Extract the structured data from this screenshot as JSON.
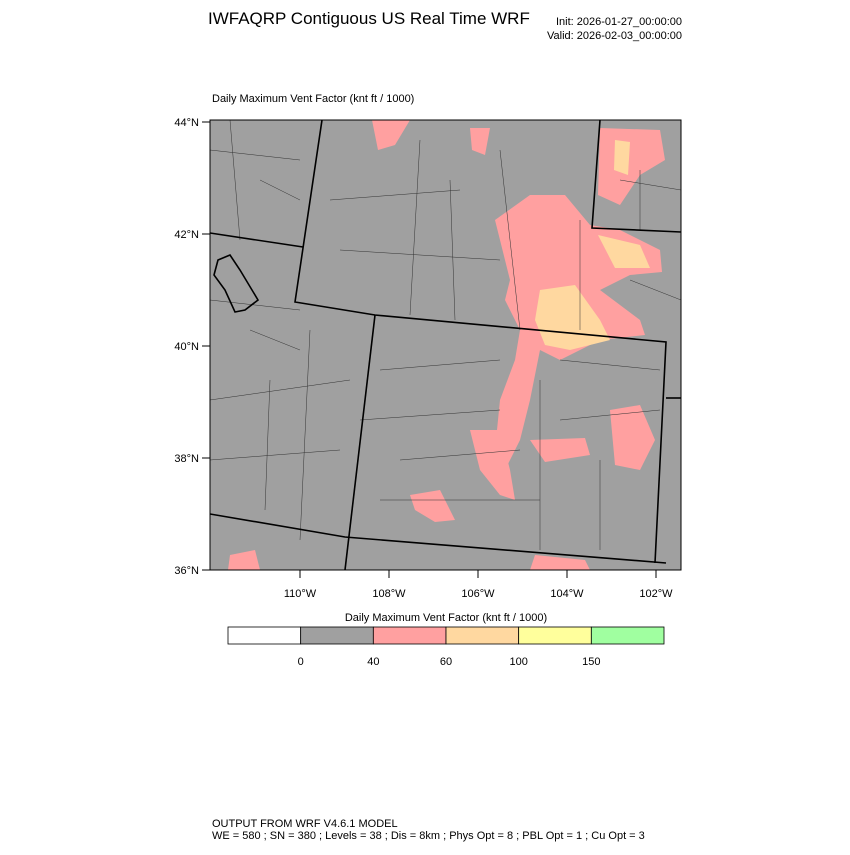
{
  "header": {
    "title": "IWFAQRP Contiguous US Real Time WRF",
    "init": "Init: 2026-01-27_00:00:00",
    "valid": "Valid: 2026-02-03_00:00:00"
  },
  "map": {
    "title": "Daily Maximum Vent Factor   (knt ft / 1000)",
    "lat_labels": [
      "44°N",
      "42°N",
      "40°N",
      "38°N",
      "36°N"
    ],
    "lon_labels": [
      "110°W",
      "108°W",
      "106°W",
      "104°W",
      "102°W"
    ]
  },
  "colorbar": {
    "title": "Daily Maximum Vent Factor  (knt ft / 1000)",
    "labels": [
      0,
      40,
      60,
      100,
      150
    ],
    "colors": [
      "#ffffff",
      "#a0a0a0",
      "#ffa0a0",
      "#ffd8a0",
      "#ffff9c",
      "#a0ffa0"
    ]
  },
  "footer": {
    "line1": "OUTPUT FROM WRF V4.6.1 MODEL",
    "line2": "WE = 580 ; SN = 380 ; Levels = 38 ; Dis = 8km ; Phys Opt = 8 ; PBL Opt = 1 ; Cu Opt = 3"
  }
}
